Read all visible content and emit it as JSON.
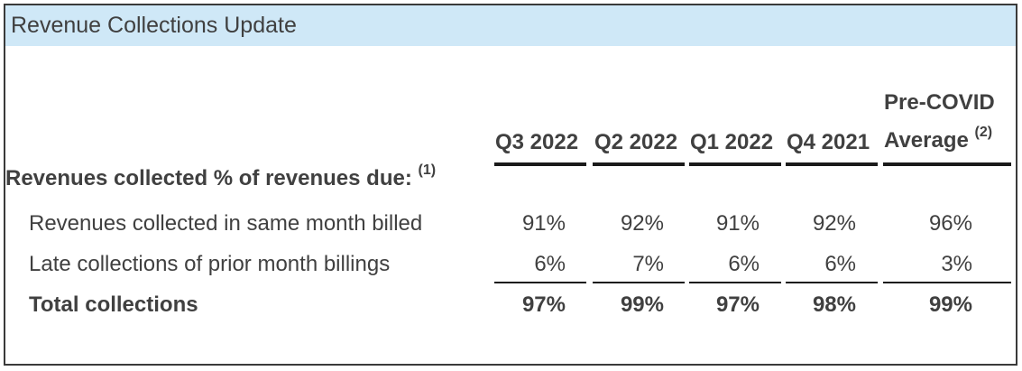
{
  "title": "Revenue Collections Update",
  "columns": [
    "Q3 2022",
    "Q2 2022",
    "Q1 2022",
    "Q4 2021"
  ],
  "precovid": {
    "line1": "Pre-COVID",
    "line2": "Average",
    "note": "(2)"
  },
  "section": {
    "label": "Revenues collected % of revenues due:",
    "note": "(1)"
  },
  "rows": [
    {
      "label": "Revenues collected in same month billed",
      "values": [
        "91%",
        "92%",
        "91%",
        "92%",
        "96%"
      ]
    },
    {
      "label": "Late collections of prior month billings",
      "values": [
        "6%",
        "7%",
        "6%",
        "6%",
        "3%"
      ]
    },
    {
      "label": "Total collections",
      "values": [
        "97%",
        "99%",
        "97%",
        "98%",
        "99%"
      ]
    }
  ]
}
